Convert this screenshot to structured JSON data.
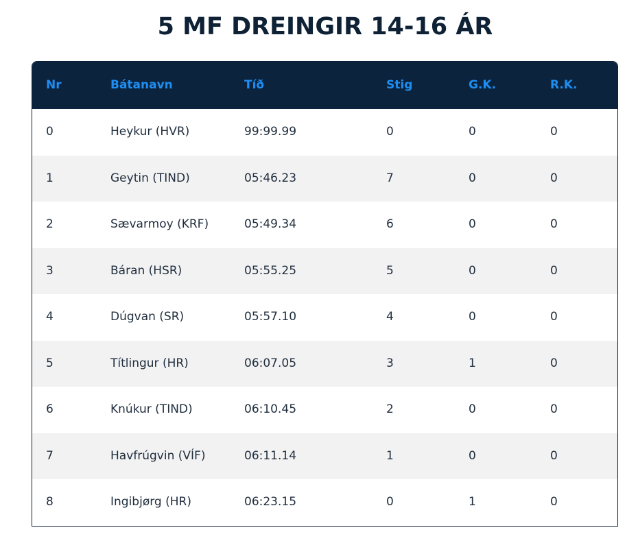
{
  "title": "5 MF DREINGIR 14-16 ÁR",
  "table": {
    "headers": {
      "nr": "Nr",
      "name": "Bátanavn",
      "time": "Tíð",
      "points": "Stig",
      "gk": "G.K.",
      "rk": "R.K."
    },
    "rows": [
      {
        "nr": "0",
        "name": "Heykur (HVR)",
        "time": "99:99.99",
        "points": "0",
        "gk": "0",
        "rk": "0"
      },
      {
        "nr": "1",
        "name": "Geytin (TIND)",
        "time": "05:46.23",
        "points": "7",
        "gk": "0",
        "rk": "0"
      },
      {
        "nr": "2",
        "name": "Sævarmoy (KRF)",
        "time": "05:49.34",
        "points": "6",
        "gk": "0",
        "rk": "0"
      },
      {
        "nr": "3",
        "name": "Báran (HSR)",
        "time": "05:55.25",
        "points": "5",
        "gk": "0",
        "rk": "0"
      },
      {
        "nr": "4",
        "name": "Dúgvan (SR)",
        "time": "05:57.10",
        "points": "4",
        "gk": "0",
        "rk": "0"
      },
      {
        "nr": "5",
        "name": "Títlingur (HR)",
        "time": "06:07.05",
        "points": "3",
        "gk": "1",
        "rk": "0"
      },
      {
        "nr": "6",
        "name": "Knúkur (TIND)",
        "time": "06:10.45",
        "points": "2",
        "gk": "0",
        "rk": "0"
      },
      {
        "nr": "7",
        "name": "Havfrúgvin (VÍF)",
        "time": "06:11.14",
        "points": "1",
        "gk": "0",
        "rk": "0"
      },
      {
        "nr": "8",
        "name": "Ingibjørg (HR)",
        "time": "06:23.15",
        "points": "0",
        "gk": "1",
        "rk": "0"
      }
    ]
  },
  "colors": {
    "header_bg": "#0b233d",
    "header_text": "#1e8ef2",
    "title_text": "#0e2135",
    "row_alt": "#f2f2f2"
  }
}
